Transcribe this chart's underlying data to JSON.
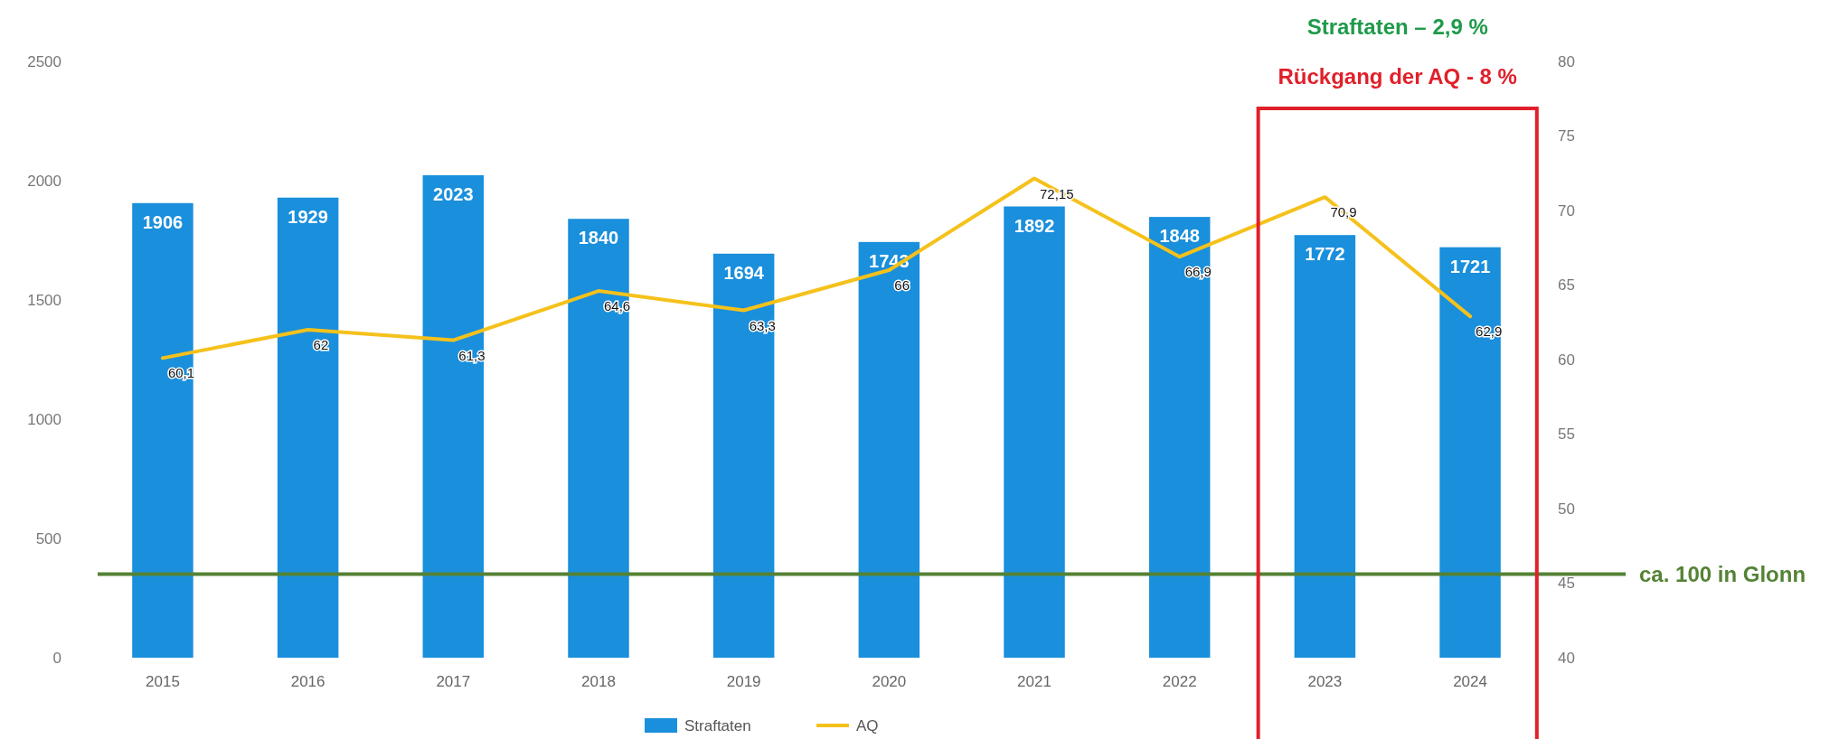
{
  "chart_data": {
    "type": "bar",
    "categories": [
      "2015",
      "2016",
      "2017",
      "2018",
      "2019",
      "2020",
      "2021",
      "2022",
      "2023",
      "2024"
    ],
    "series": [
      {
        "name": "Straftaten",
        "color": "#1a8fdc",
        "values": [
          1906,
          1929,
          2023,
          1840,
          1694,
          1743,
          1892,
          1848,
          1772,
          1721
        ],
        "value_labels": [
          "1906",
          "1929",
          "2023",
          "1840",
          "1694",
          "1743",
          "1892",
          "1848",
          "1772",
          "1721"
        ]
      },
      {
        "name": "AQ",
        "type": "line",
        "axis": "y2",
        "color": "#f5c11b",
        "values": [
          60.1,
          62,
          61.3,
          64.6,
          63.3,
          66,
          72.15,
          66.9,
          70.9,
          62.9
        ],
        "value_labels": [
          "60,1",
          "62",
          "61,3",
          "64,6",
          "63,3",
          "66",
          "72,15",
          "66,9",
          "70,9",
          "62,9"
        ]
      }
    ],
    "ylim": [
      0,
      2500
    ],
    "yticks": [
      0,
      500,
      1000,
      1500,
      2000,
      2500
    ],
    "y2lim": [
      40,
      80
    ],
    "y2ticks": [
      40,
      45,
      50,
      55,
      60,
      65,
      70,
      75,
      80
    ],
    "grid": false,
    "legend": "bottom",
    "marker": "none",
    "line_style": "solid",
    "ref_lines": [
      {
        "axis": "y",
        "value": 350,
        "label": "ca. 100 in Glonn",
        "color": "#548235"
      }
    ],
    "annotations": [
      "Straftaten – 2,9  %",
      "Rückgang der AQ - 8 %"
    ]
  }
}
